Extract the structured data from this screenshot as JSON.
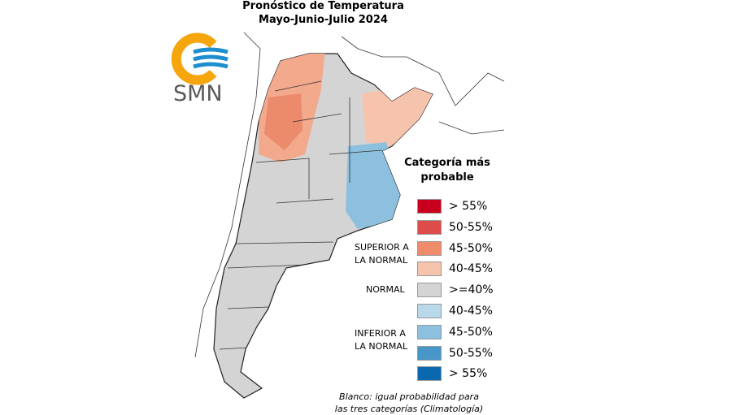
{
  "header": {
    "title": "Pronóstico de Temperatura",
    "subtitle": "Mayo-Junio-Julio 2024"
  },
  "logo": {
    "text": "SMN"
  },
  "legend": {
    "title": "Categoría más probable",
    "groups": [
      "SUPERIOR A LA NORMAL",
      "NORMAL",
      "INFERIOR A LA NORMAL"
    ],
    "items": [
      {
        "label": "> 55%",
        "color": "#c8001e"
      },
      {
        "label": "50-55%",
        "color": "#de4b4b"
      },
      {
        "label": "45-50%",
        "color": "#ef8a6a"
      },
      {
        "label": "40-45%",
        "color": "#f6c3ad"
      },
      {
        "label": ">=40%",
        "color": "#d4d4d4"
      },
      {
        "label": "40-45%",
        "color": "#b9d9ea"
      },
      {
        "label": "45-50%",
        "color": "#8cc0de"
      },
      {
        "label": "50-55%",
        "color": "#4895c7"
      },
      {
        "label": "> 55%",
        "color": "#0a68ae"
      }
    ]
  },
  "footnote": "Blanco: igual probabilidad para las tres categorías (Climatología)"
}
